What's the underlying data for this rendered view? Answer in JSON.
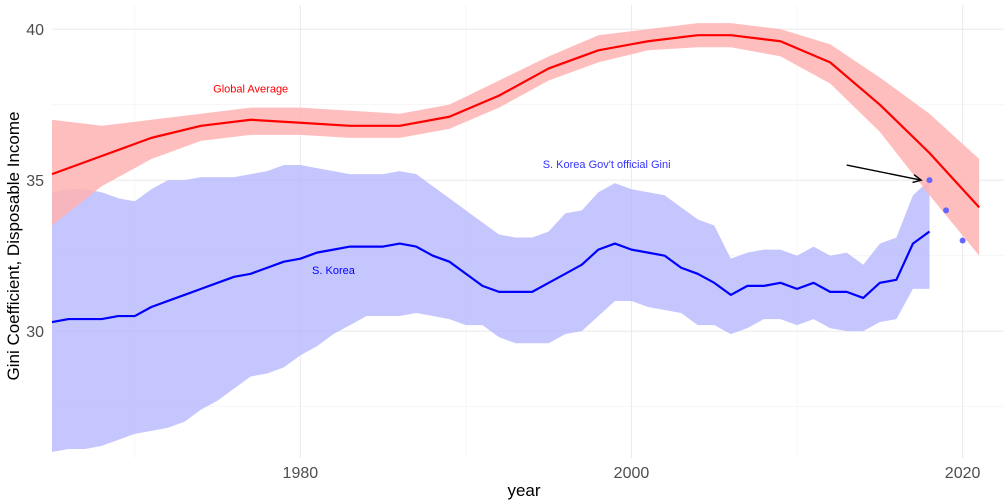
{
  "chart_data": {
    "type": "line",
    "xlabel": "year",
    "ylabel": "Gini Coefficient, Disposable Income",
    "xlim": [
      1965,
      2022.5
    ],
    "ylim": [
      25.8,
      40.8
    ],
    "x_ticks": [
      1980,
      2000,
      2020
    ],
    "x_tick_labels": [
      "1980",
      "2000",
      "2020"
    ],
    "y_ticks": [
      30,
      35,
      40
    ],
    "y_tick_labels": [
      "30",
      "35",
      "40"
    ],
    "grid": true,
    "colors": {
      "global_line": "#ff0000",
      "global_band": "#ffb3b3",
      "korea_line": "#0000ff",
      "korea_band": "#b3b3ff",
      "official_points": "#6666ff"
    },
    "series": [
      {
        "name": "Global Average",
        "x": [
          1965,
          1968,
          1971,
          1974,
          1977,
          1980,
          1983,
          1986,
          1989,
          1992,
          1995,
          1998,
          2001,
          2004,
          2006,
          2009,
          2012,
          2015,
          2018,
          2021
        ],
        "y": [
          35.2,
          35.8,
          36.4,
          36.8,
          37.0,
          36.9,
          36.8,
          36.8,
          37.1,
          37.8,
          38.7,
          39.3,
          39.6,
          39.8,
          39.8,
          39.6,
          38.9,
          37.5,
          35.9,
          34.1
        ],
        "lower": [
          33.5,
          34.8,
          35.7,
          36.3,
          36.5,
          36.5,
          36.4,
          36.4,
          36.7,
          37.4,
          38.3,
          38.9,
          39.3,
          39.4,
          39.4,
          39.1,
          38.2,
          36.6,
          34.5,
          32.5
        ],
        "upper": [
          37.0,
          36.8,
          37.0,
          37.2,
          37.4,
          37.4,
          37.3,
          37.2,
          37.5,
          38.3,
          39.1,
          39.8,
          40.0,
          40.2,
          40.2,
          40.0,
          39.5,
          38.4,
          37.2,
          35.7
        ]
      },
      {
        "name": "S. Korea",
        "x": [
          1965,
          1966,
          1967,
          1968,
          1969,
          1970,
          1971,
          1972,
          1973,
          1974,
          1975,
          1976,
          1977,
          1978,
          1979,
          1980,
          1981,
          1982,
          1983,
          1984,
          1985,
          1986,
          1987,
          1988,
          1989,
          1990,
          1991,
          1992,
          1993,
          1994,
          1995,
          1996,
          1997,
          1998,
          1999,
          2000,
          2001,
          2002,
          2003,
          2004,
          2005,
          2006,
          2007,
          2008,
          2009,
          2010,
          2011,
          2012,
          2013,
          2014,
          2015,
          2016,
          2017,
          2018
        ],
        "y": [
          30.3,
          30.4,
          30.4,
          30.4,
          30.5,
          30.5,
          30.8,
          31.0,
          31.2,
          31.4,
          31.6,
          31.8,
          31.9,
          32.1,
          32.3,
          32.4,
          32.6,
          32.7,
          32.8,
          32.8,
          32.8,
          32.9,
          32.8,
          32.5,
          32.3,
          31.9,
          31.5,
          31.3,
          31.3,
          31.3,
          31.6,
          31.9,
          32.2,
          32.7,
          32.9,
          32.7,
          32.6,
          32.5,
          32.1,
          31.9,
          31.6,
          31.2,
          31.5,
          31.5,
          31.6,
          31.4,
          31.6,
          31.3,
          31.3,
          31.1,
          31.6,
          31.7,
          32.9,
          33.3
        ],
        "lower": [
          26.0,
          26.1,
          26.1,
          26.2,
          26.4,
          26.6,
          26.7,
          26.8,
          27.0,
          27.4,
          27.7,
          28.1,
          28.5,
          28.6,
          28.8,
          29.2,
          29.5,
          29.9,
          30.2,
          30.5,
          30.5,
          30.5,
          30.6,
          30.5,
          30.4,
          30.2,
          30.2,
          29.8,
          29.6,
          29.6,
          29.6,
          29.9,
          30.0,
          30.5,
          31.0,
          31.0,
          30.8,
          30.7,
          30.6,
          30.2,
          30.2,
          29.9,
          30.1,
          30.4,
          30.4,
          30.2,
          30.4,
          30.1,
          30.0,
          30.0,
          30.3,
          30.4,
          31.4,
          31.4
        ],
        "upper": [
          34.6,
          34.7,
          34.7,
          34.6,
          34.4,
          34.3,
          34.7,
          35.0,
          35.0,
          35.1,
          35.1,
          35.1,
          35.2,
          35.3,
          35.5,
          35.5,
          35.4,
          35.3,
          35.2,
          35.2,
          35.2,
          35.3,
          35.2,
          34.8,
          34.4,
          34.0,
          33.6,
          33.2,
          33.1,
          33.1,
          33.3,
          33.9,
          34.0,
          34.6,
          34.9,
          34.7,
          34.6,
          34.5,
          34.1,
          33.7,
          33.5,
          32.4,
          32.6,
          32.7,
          32.7,
          32.5,
          32.8,
          32.5,
          32.6,
          32.2,
          32.9,
          33.1,
          34.5,
          35.0
        ]
      }
    ],
    "official_points": {
      "name": "S. Korea Gov't official Gini",
      "x": [
        2018,
        2019,
        2020
      ],
      "y": [
        35.0,
        34.0,
        33.0
      ]
    },
    "annotations": [
      {
        "text": "Global Average",
        "x": 1977,
        "y": 37.9,
        "color": "#ff0000"
      },
      {
        "text": "S. Korea",
        "x": 1982,
        "y": 31.9,
        "color": "#0000ff"
      },
      {
        "text": "S. Korea Gov't official Gini",
        "x": 1998.5,
        "y": 35.4,
        "color": "#3333ff"
      }
    ],
    "arrow": {
      "from": [
        2013,
        35.5
      ],
      "to": [
        2017.5,
        35.0
      ],
      "color": "#000000"
    }
  }
}
